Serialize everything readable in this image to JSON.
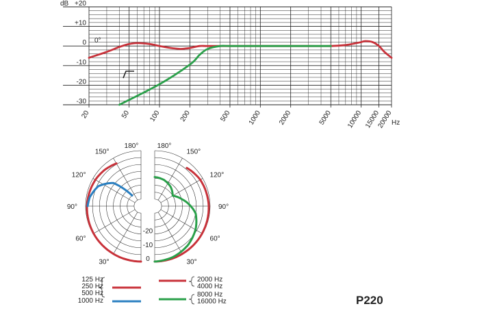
{
  "model_label": "P220",
  "colors": {
    "red": "#c8323a",
    "green": "#2aa04a",
    "blue": "#2a7fc0",
    "grid": "#222222"
  },
  "chart_data": [
    {
      "type": "line",
      "y_unit": "dB",
      "x_unit": "Hz",
      "x_scale": "log",
      "xlim": [
        20,
        20000
      ],
      "ylim": [
        -30,
        20
      ],
      "x_tick_labels": [
        "20",
        "50",
        "100",
        "200",
        "500",
        "1000",
        "2000",
        "5000",
        "10000",
        "15000",
        "20000"
      ],
      "x_tick_values": [
        20,
        50,
        100,
        200,
        500,
        1000,
        2000,
        5000,
        10000,
        15000,
        20000
      ],
      "y_tick_labels": [
        "+20",
        "+10",
        "0",
        "-10",
        "-20",
        "-30"
      ],
      "y_tick_values": [
        20,
        10,
        0,
        -10,
        -20,
        -30
      ],
      "annotation_angle": "0°",
      "grid": true,
      "series": [
        {
          "color": "#c8323a",
          "x": [
            20,
            30,
            40,
            50,
            60,
            80,
            100,
            130,
            160,
            180,
            200,
            250,
            300,
            500,
            1000,
            2000,
            3000,
            5000,
            7000,
            9000,
            10000,
            11000,
            13000,
            15000,
            17000,
            20000
          ],
          "y": [
            -6,
            -3,
            -0.5,
            1,
            1.5,
            1,
            0,
            -1,
            -1.5,
            -1.3,
            -1,
            0,
            0,
            0,
            0,
            0,
            0,
            0,
            0.5,
            1.5,
            2,
            2.5,
            2,
            0,
            -3,
            -6
          ]
        },
        {
          "color": "#2aa04a",
          "x": [
            40,
            100,
            200,
            250,
            300,
            400,
            500,
            1000,
            5000
          ],
          "y": [
            -30,
            -19.5,
            -9.5,
            -4.5,
            -1.5,
            0,
            0,
            0,
            0
          ]
        }
      ]
    },
    {
      "type": "polar",
      "angle_labels": [
        "180°",
        "150°",
        "120°",
        "90°",
        "60°",
        "30°"
      ],
      "angle_values": [
        180,
        150,
        120,
        90,
        60,
        30
      ],
      "radial_labels": [
        "0",
        "-10",
        "-20"
      ],
      "radial_values": [
        0,
        -10,
        -20
      ],
      "legend_left": [
        "125 Hz",
        "250 Hz",
        "500 Hz",
        "1000 Hz"
      ],
      "legend_right": [
        "2000 Hz",
        "4000 Hz",
        "8000 Hz",
        "16000 Hz"
      ],
      "series": [
        {
          "side": "left",
          "color": "#c8323a",
          "angles": [
            0,
            30,
            60,
            90,
            120,
            135,
            150
          ],
          "level_db": [
            0,
            -0.2,
            -0.5,
            -1,
            -2,
            -3,
            -4.5
          ]
        },
        {
          "side": "left",
          "color": "#2a7fc0",
          "angles": [
            90,
            100,
            115,
            130,
            140
          ],
          "level_db": [
            -1.5,
            -2.5,
            -6,
            -14,
            -30
          ]
        },
        {
          "side": "right",
          "color": "#c8323a",
          "angles": [
            0,
            30,
            60,
            90,
            120,
            140
          ],
          "level_db": [
            0,
            -0.2,
            -0.5,
            -1,
            -2,
            -4
          ]
        },
        {
          "side": "right",
          "color": "#2aa04a",
          "angles": [
            0,
            20,
            40,
            60,
            80,
            90,
            105,
            120,
            140,
            160,
            180
          ],
          "level_db": [
            0,
            -1,
            -3,
            -6,
            -10,
            -14,
            -20,
            -25,
            -22,
            -20,
            -19
          ]
        }
      ]
    }
  ]
}
